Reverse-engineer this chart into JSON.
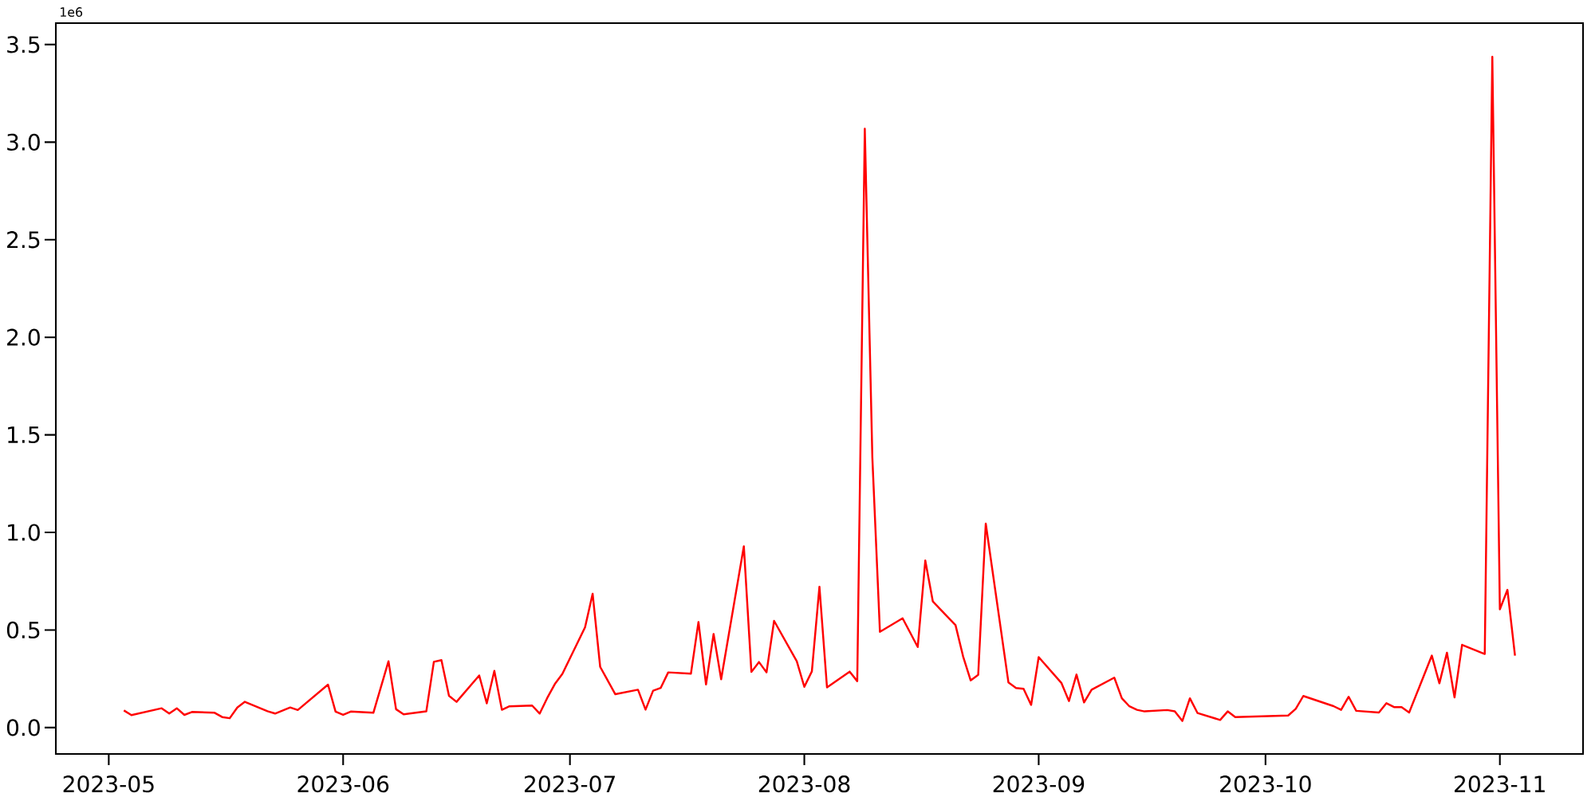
{
  "chart_data": {
    "type": "line",
    "color": "#ff0000",
    "marker": "none",
    "line_style": "solid",
    "x": [
      "2023-05-03",
      "2023-05-04",
      "2023-05-08",
      "2023-05-09",
      "2023-05-10",
      "2023-05-11",
      "2023-05-12",
      "2023-05-15",
      "2023-05-16",
      "2023-05-17",
      "2023-05-18",
      "2023-05-19",
      "2023-05-22",
      "2023-05-23",
      "2023-05-25",
      "2023-05-26",
      "2023-05-30",
      "2023-05-31",
      "2023-06-01",
      "2023-06-02",
      "2023-06-05",
      "2023-06-07",
      "2023-06-08",
      "2023-06-09",
      "2023-06-12",
      "2023-06-13",
      "2023-06-14",
      "2023-06-15",
      "2023-06-16",
      "2023-06-19",
      "2023-06-20",
      "2023-06-21",
      "2023-06-22",
      "2023-06-23",
      "2023-06-26",
      "2023-06-27",
      "2023-06-28",
      "2023-06-29",
      "2023-06-30",
      "2023-07-03",
      "2023-07-04",
      "2023-07-05",
      "2023-07-07",
      "2023-07-10",
      "2023-07-11",
      "2023-07-12",
      "2023-07-13",
      "2023-07-14",
      "2023-07-17",
      "2023-07-18",
      "2023-07-19",
      "2023-07-20",
      "2023-07-21",
      "2023-07-24",
      "2023-07-25",
      "2023-07-26",
      "2023-07-27",
      "2023-07-28",
      "2023-07-31",
      "2023-08-01",
      "2023-08-02",
      "2023-08-03",
      "2023-08-04",
      "2023-08-07",
      "2023-08-08",
      "2023-08-09",
      "2023-08-10",
      "2023-08-11",
      "2023-08-14",
      "2023-08-16",
      "2023-08-17",
      "2023-08-18",
      "2023-08-21",
      "2023-08-22",
      "2023-08-23",
      "2023-08-24",
      "2023-08-25",
      "2023-08-28",
      "2023-08-29",
      "2023-08-30",
      "2023-08-31",
      "2023-09-01",
      "2023-09-04",
      "2023-09-05",
      "2023-09-06",
      "2023-09-07",
      "2023-09-08",
      "2023-09-11",
      "2023-09-12",
      "2023-09-13",
      "2023-09-14",
      "2023-09-15",
      "2023-09-18",
      "2023-09-19",
      "2023-09-20",
      "2023-09-21",
      "2023-09-22",
      "2023-09-25",
      "2023-09-26",
      "2023-09-27",
      "2023-10-04",
      "2023-10-05",
      "2023-10-06",
      "2023-10-10",
      "2023-10-11",
      "2023-10-12",
      "2023-10-13",
      "2023-10-16",
      "2023-10-17",
      "2023-10-18",
      "2023-10-19",
      "2023-10-20",
      "2023-10-23",
      "2023-10-24",
      "2023-10-25",
      "2023-10-26",
      "2023-10-27",
      "2023-10-30",
      "2023-10-31",
      "2023-11-01",
      "2023-11-02",
      "2023-11-03"
    ],
    "values": [
      0.088,
      0.064,
      0.099,
      0.072,
      0.099,
      0.065,
      0.08,
      0.076,
      0.054,
      0.048,
      0.103,
      0.132,
      0.084,
      0.072,
      0.103,
      0.09,
      0.22,
      0.082,
      0.065,
      0.082,
      0.076,
      0.34,
      0.094,
      0.068,
      0.083,
      0.337,
      0.346,
      0.163,
      0.132,
      0.267,
      0.124,
      0.291,
      0.091,
      0.109,
      0.113,
      0.072,
      0.152,
      0.223,
      0.275,
      0.514,
      0.686,
      0.311,
      0.171,
      0.194,
      0.092,
      0.189,
      0.203,
      0.283,
      0.276,
      0.541,
      0.221,
      0.48,
      0.248,
      0.929,
      0.285,
      0.336,
      0.283,
      0.547,
      0.34,
      0.209,
      0.288,
      0.722,
      0.206,
      0.287,
      0.238,
      3.069,
      1.382,
      0.491,
      0.56,
      0.413,
      0.856,
      0.646,
      0.525,
      0.365,
      0.242,
      0.27,
      1.045,
      0.231,
      0.203,
      0.199,
      0.116,
      0.361,
      0.229,
      0.136,
      0.272,
      0.129,
      0.194,
      0.256,
      0.15,
      0.109,
      0.091,
      0.083,
      0.09,
      0.083,
      0.034,
      0.15,
      0.075,
      0.039,
      0.083,
      0.054,
      0.062,
      0.096,
      0.162,
      0.11,
      0.091,
      0.158,
      0.086,
      0.077,
      0.125,
      0.105,
      0.105,
      0.077,
      0.369,
      0.227,
      0.384,
      0.155,
      0.424,
      0.377,
      3.437,
      0.606,
      0.706,
      0.369
    ],
    "xlim": [
      "2023-04-24",
      "2023-11-12"
    ],
    "xticks": [
      {
        "value": "2023-05-01",
        "label": "2023-05"
      },
      {
        "value": "2023-06-01",
        "label": "2023-06"
      },
      {
        "value": "2023-07-01",
        "label": "2023-07"
      },
      {
        "value": "2023-08-01",
        "label": "2023-08"
      },
      {
        "value": "2023-09-01",
        "label": "2023-09"
      },
      {
        "value": "2023-10-01",
        "label": "2023-10"
      },
      {
        "value": "2023-11-01",
        "label": "2023-11"
      }
    ],
    "ylim": [
      -0.135,
      3.61
    ],
    "yticks": [
      {
        "value": 0,
        "label": "0.0"
      },
      {
        "value": 0.5,
        "label": "0.5"
      },
      {
        "value": 1,
        "label": "1.0"
      },
      {
        "value": 1.5,
        "label": "1.5"
      },
      {
        "value": 2,
        "label": "2.0"
      },
      {
        "value": 2.5,
        "label": "2.5"
      },
      {
        "value": 3,
        "label": "3.0"
      },
      {
        "value": 3.5,
        "label": "3.5"
      }
    ],
    "annotations": [
      "1e6"
    ]
  }
}
